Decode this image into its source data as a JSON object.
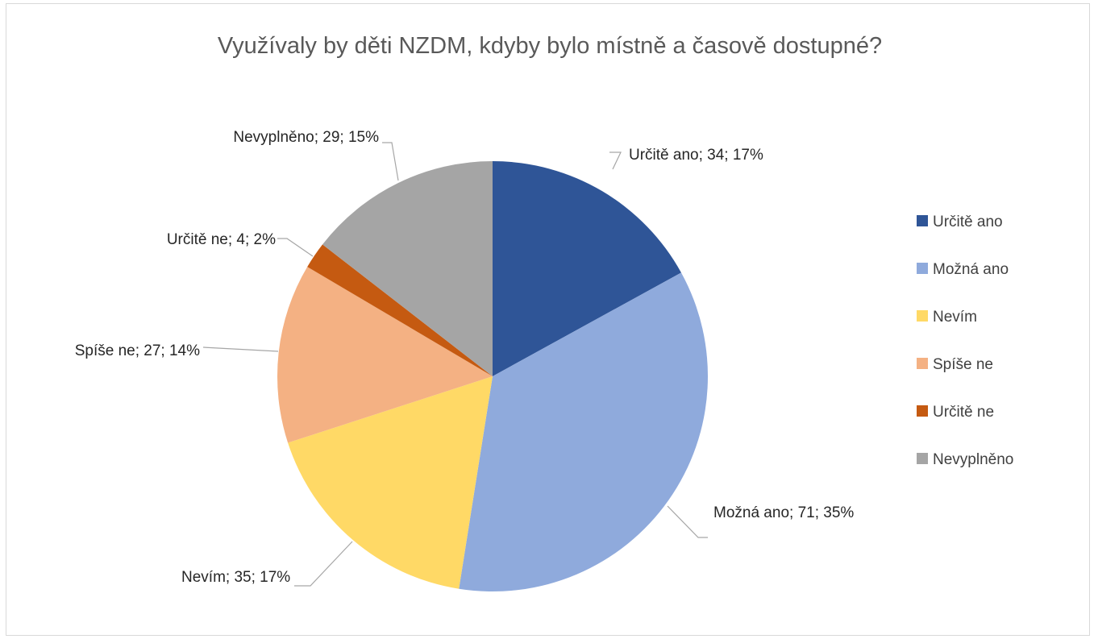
{
  "chart_data": {
    "type": "pie",
    "title": "Využívaly by děti NZDM, kdyby bylo místně a časově dostupné?",
    "slices": [
      {
        "name": "Určitě ano",
        "value": 34,
        "percent": "17%",
        "label": "Určitě ano; 34; 17%",
        "color": "#2f5597"
      },
      {
        "name": "Možná ano",
        "value": 71,
        "percent": "35%",
        "label": "Možná ano; 71; 35%",
        "color": "#8faadc"
      },
      {
        "name": "Nevím",
        "value": 35,
        "percent": "17%",
        "label": "Nevím; 35; 17%",
        "color": "#ffd966"
      },
      {
        "name": "Spíše ne",
        "value": 27,
        "percent": "14%",
        "label": "Spíše ne; 27; 14%",
        "color": "#f4b183"
      },
      {
        "name": "Určitě ne",
        "value": 4,
        "percent": "2%",
        "label": "Určitě ne; 4; 2%",
        "color": "#c55a11"
      },
      {
        "name": "Nevyplněno",
        "value": 29,
        "percent": "15%",
        "label": "Nevyplněno; 29; 15%",
        "color": "#a5a5a5"
      }
    ],
    "legend_position": "right"
  }
}
